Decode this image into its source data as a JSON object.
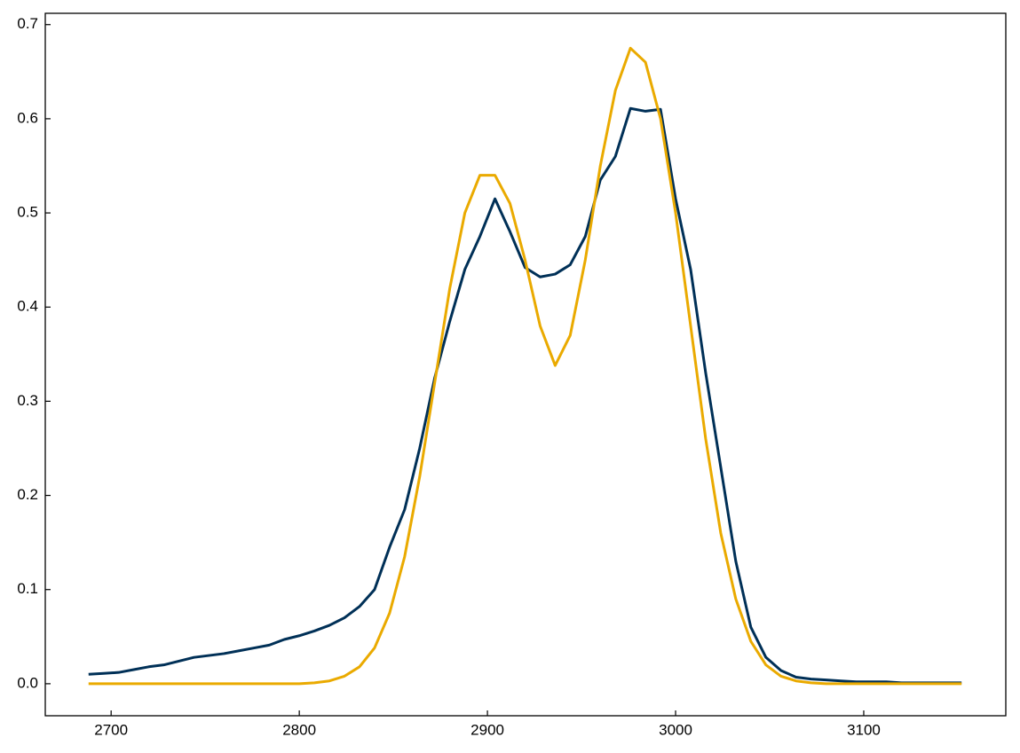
{
  "chart_data": {
    "type": "line",
    "x": [
      2688,
      2696,
      2704,
      2712,
      2720,
      2728,
      2736,
      2744,
      2752,
      2760,
      2768,
      2776,
      2784,
      2792,
      2800,
      2808,
      2816,
      2824,
      2832,
      2840,
      2848,
      2856,
      2864,
      2872,
      2880,
      2888,
      2896,
      2904,
      2912,
      2920,
      2928,
      2936,
      2944,
      2952,
      2960,
      2968,
      2976,
      2984,
      2992,
      3000,
      3008,
      3016,
      3024,
      3032,
      3040,
      3048,
      3056,
      3064,
      3072,
      3080,
      3088,
      3096,
      3104,
      3112,
      3120,
      3128,
      3136,
      3144,
      3152
    ],
    "series": [
      {
        "color": "#003057",
        "values": [
          0.01,
          0.011,
          0.012,
          0.015,
          0.018,
          0.02,
          0.024,
          0.028,
          0.03,
          0.032,
          0.035,
          0.038,
          0.041,
          0.047,
          0.051,
          0.056,
          0.062,
          0.07,
          0.082,
          0.1,
          0.145,
          0.185,
          0.25,
          0.325,
          0.385,
          0.44,
          0.475,
          0.515,
          0.48,
          0.442,
          0.432,
          0.435,
          0.445,
          0.475,
          0.535,
          0.56,
          0.611,
          0.608,
          0.61,
          0.515,
          0.44,
          0.33,
          0.23,
          0.13,
          0.06,
          0.028,
          0.014,
          0.007,
          0.005,
          0.004,
          0.003,
          0.002,
          0.002,
          0.002,
          0.001,
          0.001,
          0.001,
          0.001,
          0.001
        ]
      },
      {
        "color": "#eaaa00",
        "values": [
          0,
          0,
          0,
          0,
          0,
          0,
          0,
          0,
          0,
          0,
          0,
          0,
          0,
          0,
          0,
          0.001,
          0.003,
          0.008,
          0.018,
          0.038,
          0.075,
          0.135,
          0.22,
          0.32,
          0.42,
          0.5,
          0.54,
          0.54,
          0.51,
          0.45,
          0.38,
          0.338,
          0.37,
          0.45,
          0.55,
          0.63,
          0.675,
          0.66,
          0.6,
          0.5,
          0.38,
          0.26,
          0.16,
          0.09,
          0.045,
          0.02,
          0.008,
          0.003,
          0.001,
          0,
          0,
          0,
          0,
          0,
          0,
          0,
          0,
          0,
          0
        ]
      }
    ],
    "xlim": [
      2665,
      3175.5
    ],
    "ylim": [
      -0.034,
      0.712
    ],
    "xticks": [
      2700,
      2800,
      2900,
      3000,
      3100
    ],
    "yticks": [
      {
        "value": 0,
        "label": "0.0"
      },
      0.1,
      0.2,
      0.3,
      0.4,
      0.5,
      0.6,
      0.7
    ]
  }
}
